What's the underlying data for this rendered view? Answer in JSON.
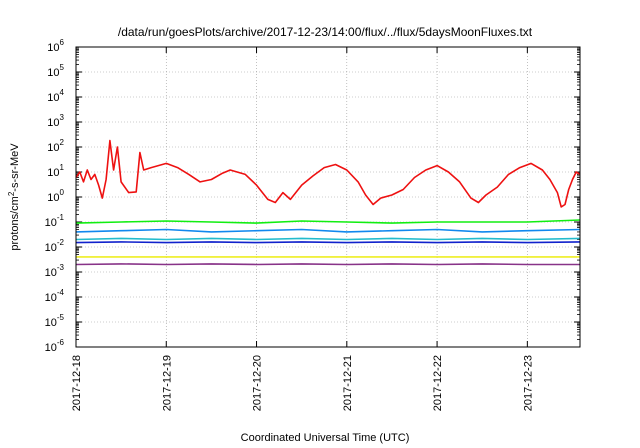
{
  "chart_data": {
    "type": "line",
    "title": "/data/run/goesPlots/archive/2017-12-23/14:00/flux/../flux/5daysMoonFluxes.txt",
    "xlabel": "Coordinated Universal Time (UTC)",
    "ylabel": {
      "prefix": "protons/cm",
      "sup": "2",
      "suffix": "-s-sr-MeV"
    },
    "x_ticks": [
      "2017-12-18",
      "2017-12-19",
      "2017-12-20",
      "2017-12-21",
      "2017-12-22",
      "2017-12-23"
    ],
    "xlim": [
      "2017-12-18T00:00",
      "2017-12-23T14:00"
    ],
    "y_scale": "log",
    "ylim": [
      1e-06,
      1000000
    ],
    "y_ticks": [
      {
        "base": "10",
        "exp": "-6"
      },
      {
        "base": "10",
        "exp": "-5"
      },
      {
        "base": "10",
        "exp": "-4"
      },
      {
        "base": "10",
        "exp": "-3"
      },
      {
        "base": "10",
        "exp": "-2"
      },
      {
        "base": "10",
        "exp": "-1"
      },
      {
        "base": "10",
        "exp": "0"
      },
      {
        "base": "10",
        "exp": "1"
      },
      {
        "base": "10",
        "exp": "2"
      },
      {
        "base": "10",
        "exp": "3"
      },
      {
        "base": "10",
        "exp": "4"
      },
      {
        "base": "10",
        "exp": "5"
      },
      {
        "base": "10",
        "exp": "6"
      }
    ],
    "grid": true,
    "series": [
      {
        "color": "#ee1111",
        "values": [
          [
            "2017-12-18T00:00",
            6
          ],
          [
            "2017-12-18T01:00",
            10
          ],
          [
            "2017-12-18T02:00",
            4
          ],
          [
            "2017-12-18T03:00",
            12
          ],
          [
            "2017-12-18T04:00",
            5
          ],
          [
            "2017-12-18T05:00",
            8
          ],
          [
            "2017-12-18T06:00",
            3
          ],
          [
            "2017-12-18T07:00",
            0.9
          ],
          [
            "2017-12-18T08:00",
            5
          ],
          [
            "2017-12-18T09:00",
            180
          ],
          [
            "2017-12-18T10:00",
            12
          ],
          [
            "2017-12-18T11:00",
            100
          ],
          [
            "2017-12-18T12:00",
            4
          ],
          [
            "2017-12-18T14:00",
            1.5
          ],
          [
            "2017-12-18T16:00",
            1.6
          ],
          [
            "2017-12-18T17:00",
            60
          ],
          [
            "2017-12-18T18:00",
            12
          ],
          [
            "2017-12-18T20:00",
            15
          ],
          [
            "2017-12-19T00:00",
            22
          ],
          [
            "2017-12-19T03:00",
            15
          ],
          [
            "2017-12-19T06:00",
            8
          ],
          [
            "2017-12-19T09:00",
            4
          ],
          [
            "2017-12-19T12:00",
            5
          ],
          [
            "2017-12-19T15:00",
            9
          ],
          [
            "2017-12-19T17:00",
            12
          ],
          [
            "2017-12-19T21:00",
            8
          ],
          [
            "2017-12-20T00:00",
            3
          ],
          [
            "2017-12-20T03:00",
            0.8
          ],
          [
            "2017-12-20T05:00",
            0.6
          ],
          [
            "2017-12-20T07:00",
            1.5
          ],
          [
            "2017-12-20T09:00",
            0.8
          ],
          [
            "2017-12-20T12:00",
            3
          ],
          [
            "2017-12-20T15:00",
            7
          ],
          [
            "2017-12-20T18:00",
            15
          ],
          [
            "2017-12-20T21:00",
            20
          ],
          [
            "2017-12-21T00:00",
            12
          ],
          [
            "2017-12-21T03:00",
            4
          ],
          [
            "2017-12-21T05:00",
            1.2
          ],
          [
            "2017-12-21T07:00",
            0.5
          ],
          [
            "2017-12-21T09:00",
            0.9
          ],
          [
            "2017-12-21T12:00",
            1.2
          ],
          [
            "2017-12-21T15:00",
            2
          ],
          [
            "2017-12-21T18:00",
            6
          ],
          [
            "2017-12-21T21:00",
            12
          ],
          [
            "2017-12-22T00:00",
            18
          ],
          [
            "2017-12-22T03:00",
            10
          ],
          [
            "2017-12-22T06:00",
            4
          ],
          [
            "2017-12-22T09:00",
            0.9
          ],
          [
            "2017-12-22T11:00",
            0.6
          ],
          [
            "2017-12-22T13:00",
            1.2
          ],
          [
            "2017-12-22T16:00",
            2.5
          ],
          [
            "2017-12-22T19:00",
            8
          ],
          [
            "2017-12-22T22:00",
            15
          ],
          [
            "2017-12-23T01:00",
            22
          ],
          [
            "2017-12-23T04:00",
            12
          ],
          [
            "2017-12-23T06:00",
            5
          ],
          [
            "2017-12-23T08:00",
            1.5
          ],
          [
            "2017-12-23T09:00",
            0.4
          ],
          [
            "2017-12-23T10:00",
            0.5
          ],
          [
            "2017-12-23T11:00",
            2
          ],
          [
            "2017-12-23T12:00",
            5
          ],
          [
            "2017-12-23T13:00",
            10
          ],
          [
            "2017-12-23T14:00",
            8
          ]
        ]
      },
      {
        "color": "#11ee11",
        "values": [
          [
            "2017-12-18T00:00",
            0.09
          ],
          [
            "2017-12-18T12:00",
            0.1
          ],
          [
            "2017-12-19T00:00",
            0.11
          ],
          [
            "2017-12-19T12:00",
            0.1
          ],
          [
            "2017-12-20T00:00",
            0.09
          ],
          [
            "2017-12-20T12:00",
            0.11
          ],
          [
            "2017-12-21T00:00",
            0.1
          ],
          [
            "2017-12-21T12:00",
            0.09
          ],
          [
            "2017-12-22T00:00",
            0.1
          ],
          [
            "2017-12-22T12:00",
            0.1
          ],
          [
            "2017-12-23T00:00",
            0.1
          ],
          [
            "2017-12-23T14:00",
            0.12
          ]
        ]
      },
      {
        "color": "#1188ee",
        "values": [
          [
            "2017-12-18T00:00",
            0.04
          ],
          [
            "2017-12-18T12:00",
            0.045
          ],
          [
            "2017-12-19T00:00",
            0.05
          ],
          [
            "2017-12-19T12:00",
            0.04
          ],
          [
            "2017-12-20T00:00",
            0.045
          ],
          [
            "2017-12-20T12:00",
            0.05
          ],
          [
            "2017-12-21T00:00",
            0.04
          ],
          [
            "2017-12-21T12:00",
            0.045
          ],
          [
            "2017-12-22T00:00",
            0.05
          ],
          [
            "2017-12-22T12:00",
            0.04
          ],
          [
            "2017-12-23T00:00",
            0.045
          ],
          [
            "2017-12-23T14:00",
            0.05
          ]
        ]
      },
      {
        "color": "#22bbcc",
        "values": [
          [
            "2017-12-18T00:00",
            0.02
          ],
          [
            "2017-12-18T12:00",
            0.022
          ],
          [
            "2017-12-19T00:00",
            0.02
          ],
          [
            "2017-12-19T12:00",
            0.022
          ],
          [
            "2017-12-20T00:00",
            0.02
          ],
          [
            "2017-12-20T12:00",
            0.022
          ],
          [
            "2017-12-21T00:00",
            0.02
          ],
          [
            "2017-12-21T12:00",
            0.022
          ],
          [
            "2017-12-22T00:00",
            0.02
          ],
          [
            "2017-12-22T12:00",
            0.022
          ],
          [
            "2017-12-23T00:00",
            0.02
          ],
          [
            "2017-12-23T14:00",
            0.022
          ]
        ]
      },
      {
        "color": "#1122cc",
        "values": [
          [
            "2017-12-18T00:00",
            0.015
          ],
          [
            "2017-12-18T12:00",
            0.016
          ],
          [
            "2017-12-19T00:00",
            0.015
          ],
          [
            "2017-12-19T12:00",
            0.016
          ],
          [
            "2017-12-20T00:00",
            0.015
          ],
          [
            "2017-12-20T12:00",
            0.016
          ],
          [
            "2017-12-21T00:00",
            0.015
          ],
          [
            "2017-12-21T12:00",
            0.016
          ],
          [
            "2017-12-22T00:00",
            0.015
          ],
          [
            "2017-12-22T12:00",
            0.016
          ],
          [
            "2017-12-23T00:00",
            0.015
          ],
          [
            "2017-12-23T14:00",
            0.016
          ]
        ]
      },
      {
        "color": "#eeee22",
        "values": [
          [
            "2017-12-18T00:00",
            0.004
          ],
          [
            "2017-12-18T12:00",
            0.004
          ],
          [
            "2017-12-19T00:00",
            0.004
          ],
          [
            "2017-12-19T12:00",
            0.004
          ],
          [
            "2017-12-20T00:00",
            0.004
          ],
          [
            "2017-12-20T12:00",
            0.004
          ],
          [
            "2017-12-21T00:00",
            0.004
          ],
          [
            "2017-12-21T12:00",
            0.004
          ],
          [
            "2017-12-22T00:00",
            0.004
          ],
          [
            "2017-12-22T12:00",
            0.004
          ],
          [
            "2017-12-23T00:00",
            0.004
          ],
          [
            "2017-12-23T14:00",
            0.004
          ]
        ]
      },
      {
        "color": "#883388",
        "values": [
          [
            "2017-12-18T00:00",
            0.002
          ],
          [
            "2017-12-18T12:00",
            0.0021
          ],
          [
            "2017-12-19T00:00",
            0.002
          ],
          [
            "2017-12-19T12:00",
            0.0021
          ],
          [
            "2017-12-20T00:00",
            0.002
          ],
          [
            "2017-12-20T12:00",
            0.0021
          ],
          [
            "2017-12-21T00:00",
            0.002
          ],
          [
            "2017-12-21T12:00",
            0.0021
          ],
          [
            "2017-12-22T00:00",
            0.002
          ],
          [
            "2017-12-22T12:00",
            0.0021
          ],
          [
            "2017-12-23T00:00",
            0.002
          ],
          [
            "2017-12-23T14:00",
            0.002
          ]
        ]
      }
    ]
  }
}
